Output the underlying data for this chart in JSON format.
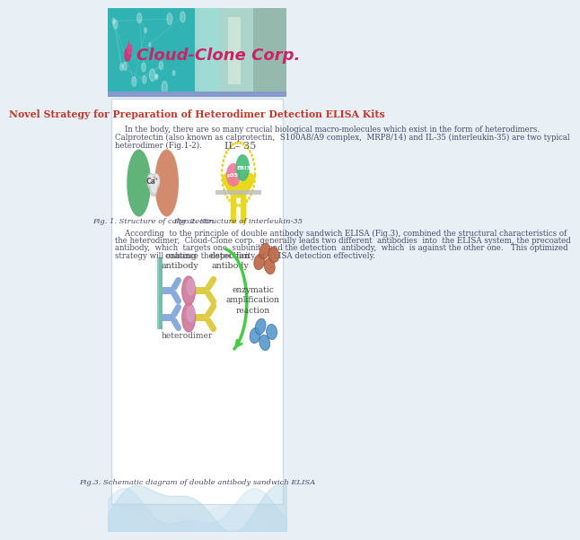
{
  "title": "Novel Strategy for Preparation of Heterodimer Detection ELISA Kits",
  "title_color": "#c0392b",
  "title_fontsize": 7.8,
  "body_text1_line1": "    In the body, there are so many crucial biological macro-molecules which exist in the form of heterodimers.",
  "body_text1_line2": "Calprotectin (also known as calprotectin,  S100A8/A9 complex,  MRP8/14) and IL-35 (interleukin-35) are two typical",
  "body_text1_line3": "heterodimer (Fig.1-2).",
  "body_text2_line1": "    According  to the principle of double antibody sandwich ELISA (Fig.3), combined the structural characteristics of",
  "body_text2_line2": "the heterodimer,  Cloud-Clone corp.  generally leads two different  antibodies  into  the ELISA system, the precoated",
  "body_text2_line3": "antibody,  which  targets one  subunit,  and the detection  antibody,  which  is against the other one.   This optimized",
  "body_text2_line4": "strategy will enhance the specificity of ELISA detection effectively.",
  "fig1_caption": "Fig. 1. Structure of calprotectin",
  "fig2_caption": "Fig. 2. Structure of interleukin-35",
  "fig3_caption": "Fig.3. Schematic diagram of double antibody sandwich ELISA",
  "il35_label": "IL– 35",
  "coating_label": "coating\nantibody",
  "detection_label": "detection\nantibody",
  "enzymatic_label": "enzymatic\namplification\nreaction",
  "heterodimer_label": "heterodimer",
  "header_teal": "#3abfbe",
  "header_dark": "#1a9090",
  "bar_color": "#7a8abf",
  "white": "#ffffff",
  "text_color": "#4a4a6a",
  "body_fontsize": 6.2,
  "caption_fontsize": 6.0,
  "wave_color1": "#a8cce0",
  "wave_color2": "#c8def0"
}
